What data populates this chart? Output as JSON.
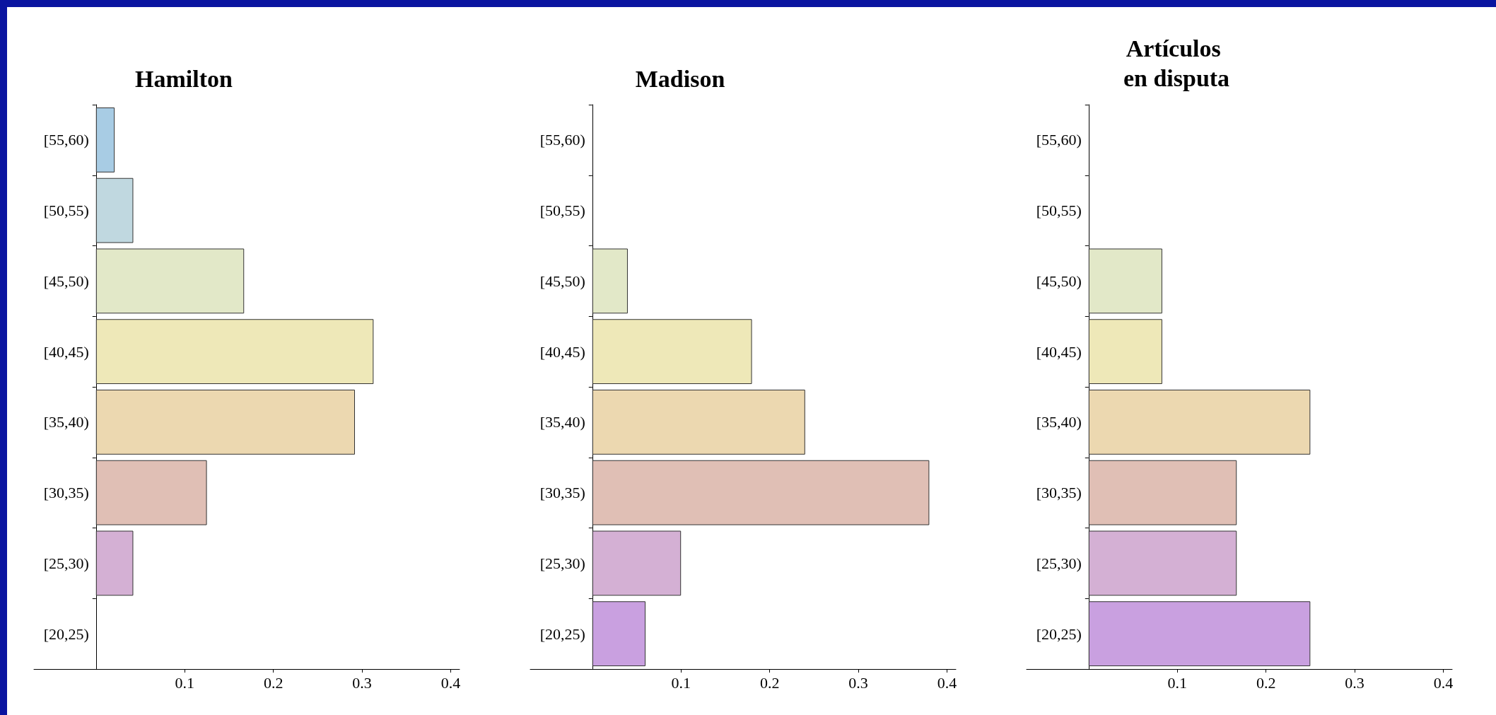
{
  "chart_data": [
    {
      "type": "bar",
      "orientation": "horizontal",
      "title": "Hamilton",
      "categories": [
        "[55,60)",
        "[50,55)",
        "[45,50)",
        "[40,45)",
        "[35,40)",
        "[30,35)",
        "[25,30)",
        "[20,25)"
      ],
      "values": [
        0.021,
        0.042,
        0.167,
        0.313,
        0.292,
        0.125,
        0.042,
        0
      ],
      "colors": [
        "#a8cce4",
        "#c0d8e0",
        "#e2e8c8",
        "#eee8b8",
        "#ecd8b0",
        "#e0bfb5",
        "#d4b0d4",
        "#c9a0e0"
      ],
      "xlim": [
        -0.07,
        0.41
      ],
      "xticks": [
        0.1,
        0.2,
        0.3,
        0.4
      ],
      "grid": false
    },
    {
      "type": "bar",
      "orientation": "horizontal",
      "title": "Madison",
      "categories": [
        "[55,60)",
        "[50,55)",
        "[45,50)",
        "[40,45)",
        "[35,40)",
        "[30,35)",
        "[25,30)",
        "[20,25)"
      ],
      "values": [
        0,
        0,
        0.04,
        0.18,
        0.24,
        0.38,
        0.1,
        0.06
      ],
      "colors": [
        "#a8cce4",
        "#c0d8e0",
        "#e2e8c8",
        "#eee8b8",
        "#ecd8b0",
        "#e0bfb5",
        "#d4b0d4",
        "#c9a0e0"
      ],
      "xlim": [
        -0.07,
        0.41
      ],
      "xticks": [
        0.1,
        0.2,
        0.3,
        0.4
      ],
      "grid": false
    },
    {
      "type": "bar",
      "orientation": "horizontal",
      "title": "Artículos en disputa",
      "categories": [
        "[55,60)",
        "[50,55)",
        "[45,50)",
        "[40,45)",
        "[35,40)",
        "[30,35)",
        "[25,30)",
        "[20,25)"
      ],
      "values": [
        0,
        0,
        0.083,
        0.083,
        0.25,
        0.167,
        0.167,
        0.25
      ],
      "colors": [
        "#a8cce4",
        "#c0d8e0",
        "#e2e8c8",
        "#eee8b8",
        "#ecd8b0",
        "#e0bfb5",
        "#d4b0d4",
        "#c9a0e0"
      ],
      "xlim": [
        -0.07,
        0.41
      ],
      "xticks": [
        0.1,
        0.2,
        0.3,
        0.4
      ],
      "grid": false
    }
  ]
}
